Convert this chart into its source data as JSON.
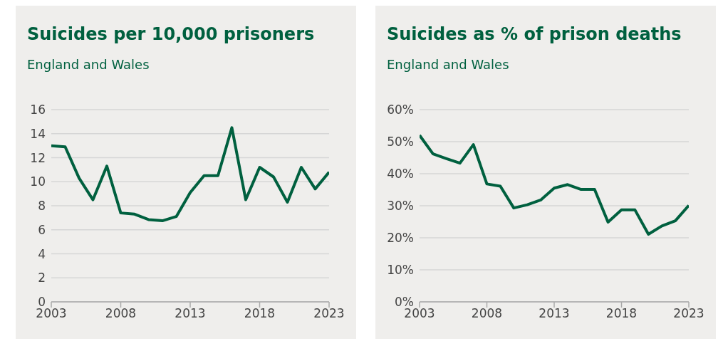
{
  "chart_data": [
    {
      "type": "line",
      "title": "Suicides per 10,000 prisoners",
      "subtitle": "England and Wales",
      "x": [
        2003,
        2004,
        2005,
        2006,
        2007,
        2008,
        2009,
        2010,
        2011,
        2012,
        2013,
        2014,
        2015,
        2016,
        2017,
        2018,
        2019,
        2020,
        2021,
        2022,
        2023
      ],
      "series": [
        {
          "color": "#00603f",
          "values": [
            13.0,
            12.9,
            10.3,
            8.5,
            11.3,
            7.4,
            7.3,
            6.85,
            6.75,
            7.1,
            9.1,
            10.5,
            10.5,
            14.5,
            8.5,
            11.2,
            10.4,
            8.3,
            11.2,
            9.4,
            10.8
          ]
        }
      ],
      "xlim": [
        2003,
        2023
      ],
      "xticks": [
        2003,
        2008,
        2013,
        2018,
        2023
      ],
      "ylim": [
        0,
        16
      ],
      "yticks": [
        0,
        2,
        4,
        6,
        8,
        10,
        12,
        14,
        16
      ],
      "grid": "y",
      "legend": false,
      "marker": "none",
      "line_style": "solid"
    },
    {
      "type": "line",
      "title": "Suicides as % of prison deaths",
      "subtitle": "England and Wales",
      "x": [
        2003,
        2004,
        2005,
        2006,
        2007,
        2008,
        2009,
        2010,
        2011,
        2012,
        2013,
        2014,
        2015,
        2016,
        2017,
        2018,
        2019,
        2020,
        2021,
        2022,
        2023
      ],
      "series": [
        {
          "color": "#00603f",
          "values": [
            52,
            46.2,
            44.7,
            43.3,
            49.1,
            36.8,
            36.1,
            29.3,
            30.3,
            31.8,
            35.5,
            36.6,
            35.1,
            35.1,
            24.9,
            28.7,
            28.7,
            21.1,
            23.7,
            25.3,
            30.1
          ]
        }
      ],
      "xlim": [
        2003,
        2023
      ],
      "xticks": [
        2003,
        2008,
        2013,
        2018,
        2023
      ],
      "ylim": [
        0,
        60
      ],
      "yticks": [
        {
          "value": 0,
          "label": "0%"
        },
        {
          "value": 10,
          "label": "10%"
        },
        {
          "value": 20,
          "label": "20%"
        },
        {
          "value": 30,
          "label": "30%"
        },
        {
          "value": 40,
          "label": "40%"
        },
        {
          "value": 50,
          "label": "50%"
        },
        {
          "value": 60,
          "label": "60%"
        }
      ],
      "grid": "y",
      "legend": false,
      "marker": "none",
      "line_style": "solid"
    }
  ]
}
